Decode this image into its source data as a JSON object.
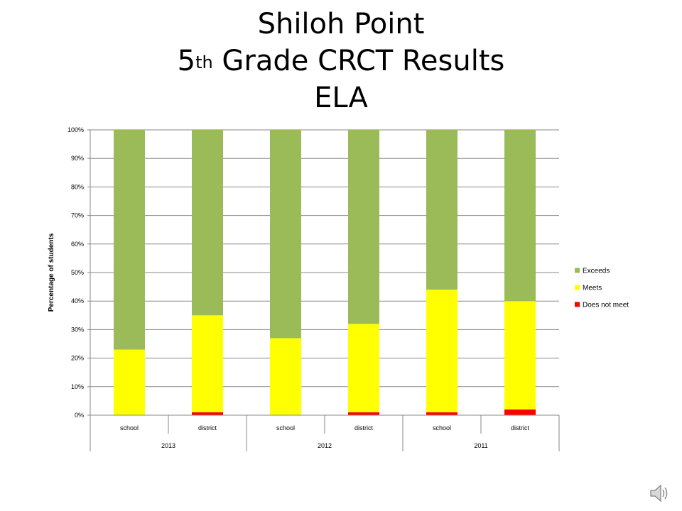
{
  "slide": {
    "title_line1": "Shiloh Point",
    "title_line2_prefix": "5",
    "title_line2_sup": "th",
    "title_line2_rest": " Grade CRCT Results",
    "title_line3": "ELA"
  },
  "chart_data": {
    "type": "bar",
    "stacked": true,
    "ylabel": "Percentage of students",
    "ylim": [
      0,
      100
    ],
    "yticks": [
      "0%",
      "10%",
      "20%",
      "30%",
      "40%",
      "50%",
      "60%",
      "70%",
      "80%",
      "90%",
      "100%"
    ],
    "categories": [
      "school",
      "district",
      "school",
      "district",
      "school",
      "district"
    ],
    "groups": [
      {
        "label": "2013",
        "categories": [
          "school",
          "district"
        ]
      },
      {
        "label": "2012",
        "categories": [
          "school",
          "district"
        ]
      },
      {
        "label": "2011",
        "categories": [
          "school",
          "district"
        ]
      }
    ],
    "series": [
      {
        "name": "Does not meet",
        "color": "#ff0000",
        "values": [
          0,
          1,
          0,
          1,
          1,
          2
        ]
      },
      {
        "name": "Meets",
        "color": "#ffff00",
        "values": [
          23,
          34,
          27,
          31,
          43,
          38
        ]
      },
      {
        "name": "Exceeds",
        "color": "#9bbb59",
        "values": [
          77,
          65,
          73,
          68,
          56,
          60
        ]
      }
    ],
    "legend": {
      "position": "right",
      "order": [
        "Exceeds",
        "Meets",
        "Does not meet"
      ]
    },
    "grid": true
  },
  "icons": {
    "speaker": "speaker-icon"
  }
}
